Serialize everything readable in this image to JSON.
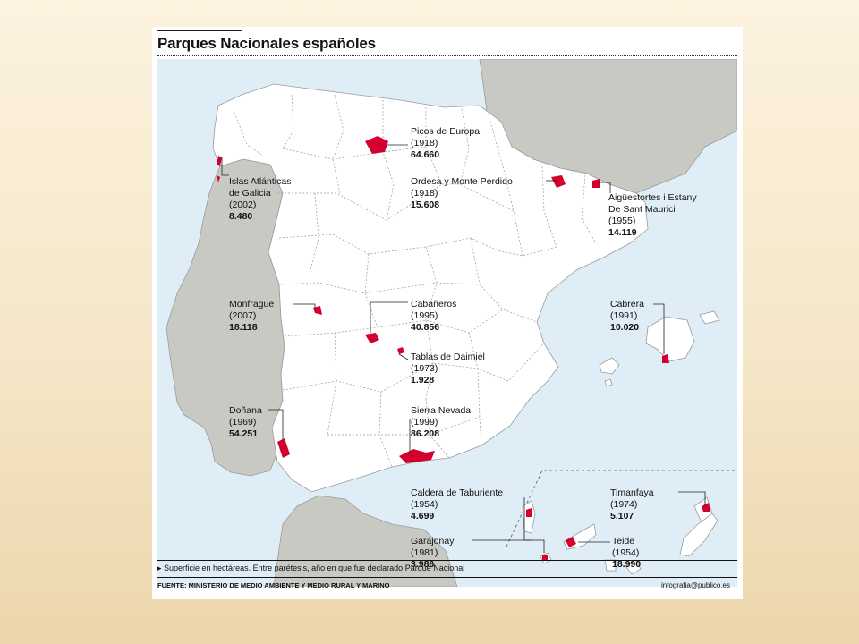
{
  "title": "Parques Nacionales españoles",
  "parks": [
    {
      "name_lines": [
        "Picos de Europa"
      ],
      "year": "(1918)",
      "area": "64.660"
    },
    {
      "name_lines": [
        "Ordesa y Monte Perdido"
      ],
      "year": "(1918)",
      "area": "15.608"
    },
    {
      "name_lines": [
        "Aigüestortes i Estany",
        "De Sant Maurici"
      ],
      "year": "(1955)",
      "area": "14.119"
    },
    {
      "name_lines": [
        "Islas Atlánticas",
        "de Galicia"
      ],
      "year": "(2002)",
      "area": "8.480"
    },
    {
      "name_lines": [
        "Monfragüe"
      ],
      "year": "(2007)",
      "area": "18.118"
    },
    {
      "name_lines": [
        "Cabañeros"
      ],
      "year": "(1995)",
      "area": "40.856"
    },
    {
      "name_lines": [
        "Tablas de Daimiel"
      ],
      "year": "(1973)",
      "area": "1.928"
    },
    {
      "name_lines": [
        "Cabrera"
      ],
      "year": "(1991)",
      "area": "10.020"
    },
    {
      "name_lines": [
        "Doñana"
      ],
      "year": "(1969)",
      "area": "54.251"
    },
    {
      "name_lines": [
        "Sierra Nevada"
      ],
      "year": "(1999)",
      "area": "86.208"
    },
    {
      "name_lines": [
        "Caldera de Taburiente"
      ],
      "year": "(1954)",
      "area": "4.699"
    },
    {
      "name_lines": [
        "Timanfaya"
      ],
      "year": "(1974)",
      "area": "5.107"
    },
    {
      "name_lines": [
        "Garajonay"
      ],
      "year": "(1981)",
      "area": "3.986"
    },
    {
      "name_lines": [
        "Teide"
      ],
      "year": "(1954)",
      "area": "18.990"
    }
  ],
  "footnote": "▸ Superficie en hectáreas. Entre parétesis, año en que fue declarado Parque Nacional",
  "source": "FUENTE: MINISTERIO DE MEDIO AMBIENTE Y MEDIO RURAL Y MARINO",
  "credit": "infografia@publico.es",
  "colors": {
    "sea": "#dfeef6",
    "land": "#ffffff",
    "neighbor": "#c9c9c4",
    "park": "#d4002d",
    "background": "#f5e6c8"
  }
}
